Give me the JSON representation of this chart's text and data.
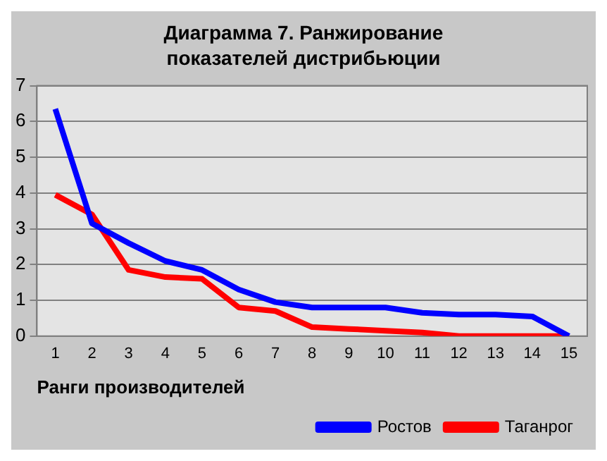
{
  "chart_data": {
    "type": "line",
    "title": "Диаграмма 7. Ранжирование показателей дистрибьюции",
    "xlabel": "Ранги производителей",
    "categories": [
      "1",
      "2",
      "3",
      "4",
      "5",
      "6",
      "7",
      "8",
      "9",
      "10",
      "11",
      "12",
      "13",
      "14",
      "15"
    ],
    "series": [
      {
        "name": "Ростов",
        "color": "#0000ff",
        "values": [
          6.35,
          3.15,
          2.6,
          2.1,
          1.85,
          1.3,
          0.95,
          0.8,
          0.8,
          0.8,
          0.65,
          0.6,
          0.6,
          0.55,
          0
        ]
      },
      {
        "name": "Таганрог",
        "color": "#ff0000",
        "values": [
          3.95,
          3.4,
          1.85,
          1.65,
          1.6,
          0.8,
          0.7,
          0.25,
          0.2,
          0.15,
          0.1,
          0,
          0,
          0,
          0
        ]
      }
    ],
    "ylim": [
      0,
      7
    ],
    "yticks": [
      0,
      1,
      2,
      3,
      4,
      5,
      6,
      7
    ],
    "grid": "y",
    "legend": "bottom right",
    "marker": "none",
    "line_style": "solid"
  }
}
